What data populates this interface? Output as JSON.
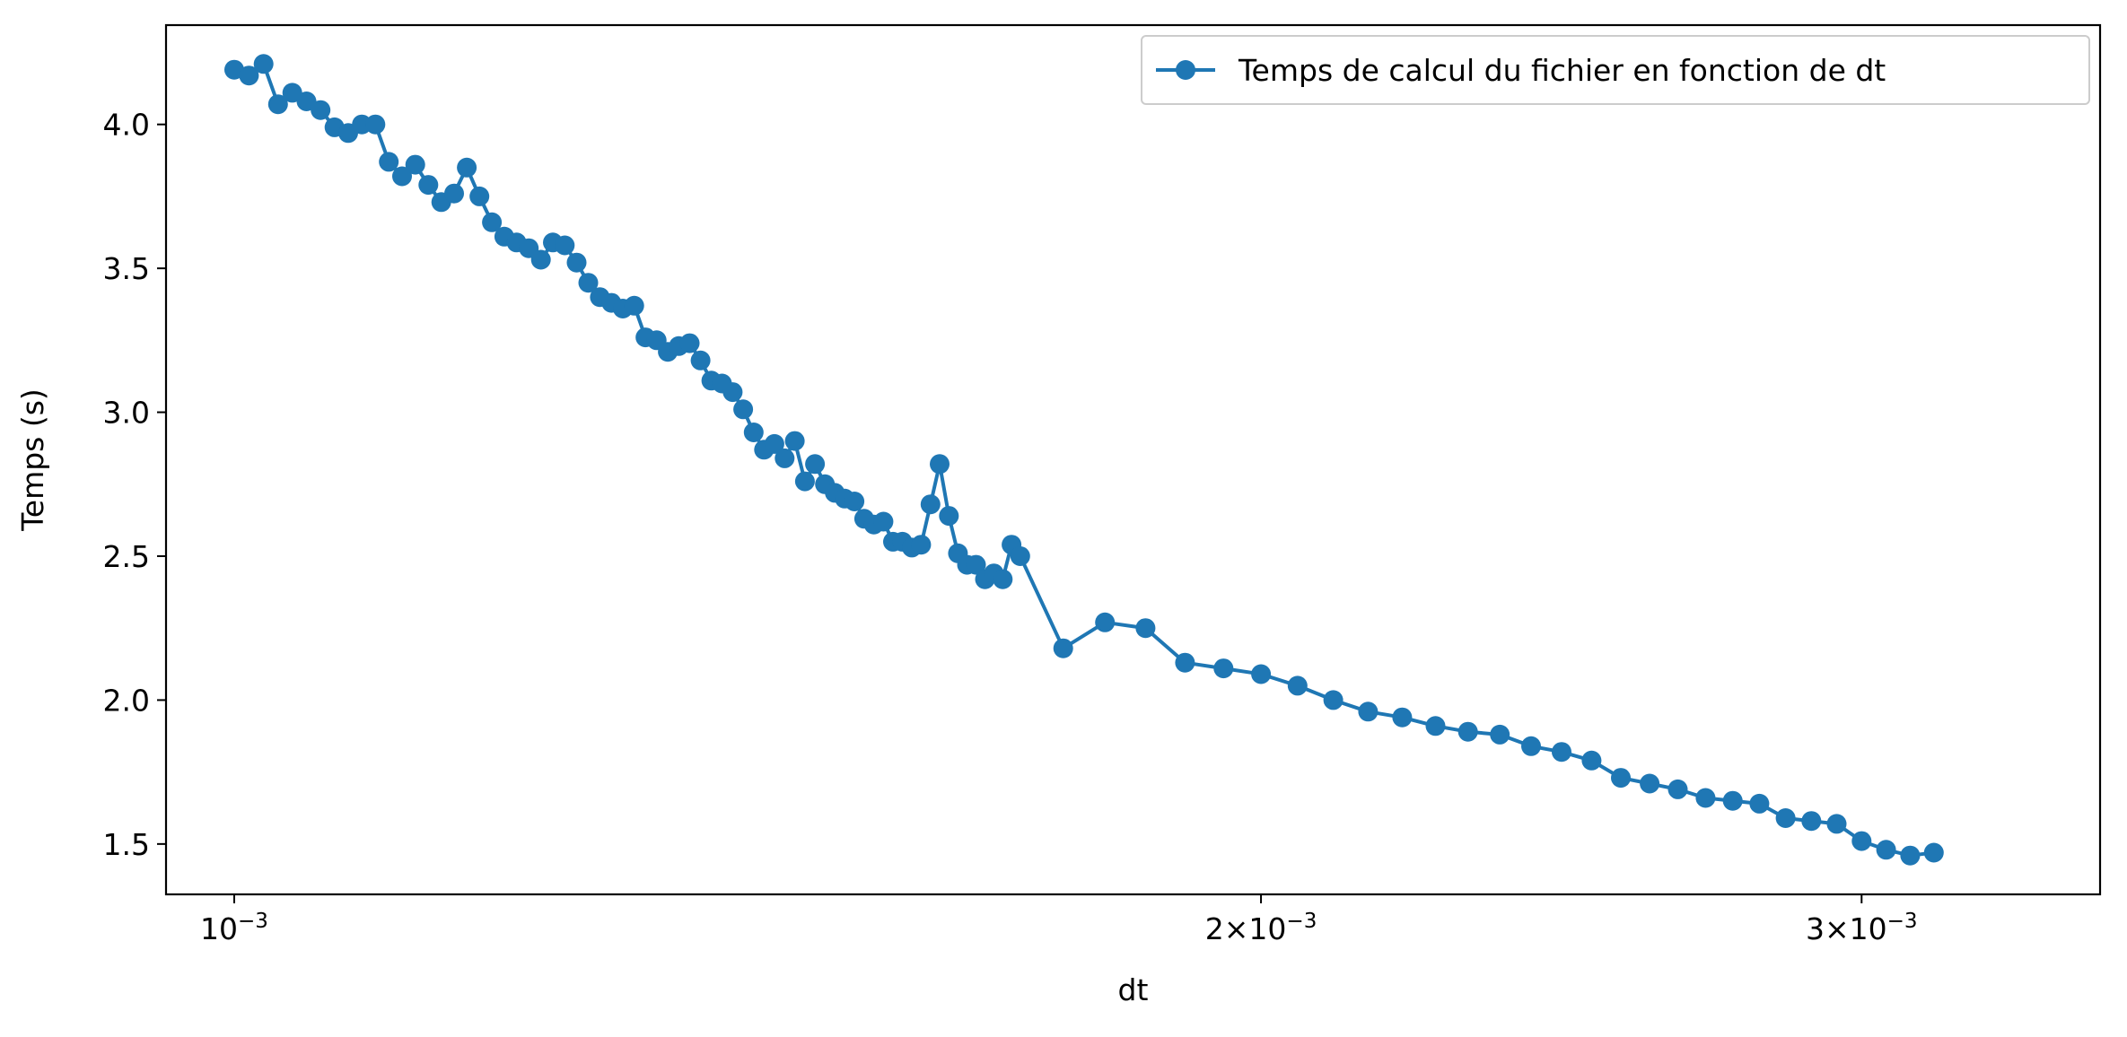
{
  "chart_data": {
    "type": "line",
    "title": "",
    "xlabel": "dt",
    "ylabel": "Temps (s)",
    "xscale": "log",
    "xlim": [
      0.000955,
      0.003524
    ],
    "ylim": [
      1.325,
      4.345
    ],
    "grid": false,
    "legend_position": "top-right",
    "x_tick_labels": [
      {
        "value": 0.001,
        "base": "10",
        "exp": "−3"
      },
      {
        "value": 0.002,
        "base": "2×10",
        "exp": "−3"
      },
      {
        "value": 0.003,
        "base": "3×10",
        "exp": "−3"
      }
    ],
    "y_ticks": [
      1.5,
      2.0,
      2.5,
      3.0,
      3.5,
      4.0
    ],
    "y_tick_labels": [
      "1.5",
      "2.0",
      "2.5",
      "3.0",
      "3.5",
      "4.0"
    ],
    "series": [
      {
        "name": "Temps de calcul du fichier en fonction de dt",
        "color": "#1f77b4",
        "marker": "circle",
        "points": [
          [
            0.001,
            4.19
          ],
          [
            0.00101,
            4.17
          ],
          [
            0.00102,
            4.21
          ],
          [
            0.00103,
            4.07
          ],
          [
            0.00104,
            4.11
          ],
          [
            0.00105,
            4.08
          ],
          [
            0.00106,
            4.05
          ],
          [
            0.00107,
            3.99
          ],
          [
            0.00108,
            3.97
          ],
          [
            0.00109,
            4.0
          ],
          [
            0.0011,
            4.0
          ],
          [
            0.00111,
            3.87
          ],
          [
            0.00112,
            3.82
          ],
          [
            0.00113,
            3.86
          ],
          [
            0.00114,
            3.79
          ],
          [
            0.00115,
            3.73
          ],
          [
            0.00116,
            3.76
          ],
          [
            0.00117,
            3.85
          ],
          [
            0.00118,
            3.75
          ],
          [
            0.00119,
            3.66
          ],
          [
            0.0012,
            3.61
          ],
          [
            0.00121,
            3.59
          ],
          [
            0.00122,
            3.57
          ],
          [
            0.00123,
            3.53
          ],
          [
            0.00124,
            3.59
          ],
          [
            0.00125,
            3.58
          ],
          [
            0.00126,
            3.52
          ],
          [
            0.00127,
            3.45
          ],
          [
            0.00128,
            3.4
          ],
          [
            0.00129,
            3.38
          ],
          [
            0.0013,
            3.36
          ],
          [
            0.00131,
            3.37
          ],
          [
            0.00132,
            3.26
          ],
          [
            0.00133,
            3.25
          ],
          [
            0.00134,
            3.21
          ],
          [
            0.00135,
            3.23
          ],
          [
            0.00136,
            3.24
          ],
          [
            0.00137,
            3.18
          ],
          [
            0.00138,
            3.11
          ],
          [
            0.00139,
            3.1
          ],
          [
            0.0014,
            3.07
          ],
          [
            0.00141,
            3.01
          ],
          [
            0.00142,
            2.93
          ],
          [
            0.00143,
            2.87
          ],
          [
            0.00144,
            2.89
          ],
          [
            0.00145,
            2.84
          ],
          [
            0.00146,
            2.9
          ],
          [
            0.00147,
            2.76
          ],
          [
            0.00148,
            2.82
          ],
          [
            0.00149,
            2.75
          ],
          [
            0.0015,
            2.72
          ],
          [
            0.00151,
            2.7
          ],
          [
            0.00152,
            2.69
          ],
          [
            0.00153,
            2.63
          ],
          [
            0.00154,
            2.61
          ],
          [
            0.00155,
            2.62
          ],
          [
            0.00156,
            2.55
          ],
          [
            0.00157,
            2.55
          ],
          [
            0.00158,
            2.53
          ],
          [
            0.00159,
            2.54
          ],
          [
            0.0016,
            2.68
          ],
          [
            0.00161,
            2.82
          ],
          [
            0.00162,
            2.64
          ],
          [
            0.00163,
            2.51
          ],
          [
            0.00164,
            2.47
          ],
          [
            0.00165,
            2.47
          ],
          [
            0.00166,
            2.42
          ],
          [
            0.00167,
            2.44
          ],
          [
            0.00168,
            2.42
          ],
          [
            0.00169,
            2.54
          ],
          [
            0.0017,
            2.5
          ],
          [
            0.00175,
            2.18
          ],
          [
            0.0018,
            2.27
          ],
          [
            0.00185,
            2.25
          ],
          [
            0.0019,
            2.13
          ],
          [
            0.00195,
            2.11
          ],
          [
            0.002,
            2.09
          ],
          [
            0.00205,
            2.05
          ],
          [
            0.0021,
            2.0
          ],
          [
            0.00215,
            1.96
          ],
          [
            0.0022,
            1.94
          ],
          [
            0.00225,
            1.91
          ],
          [
            0.0023,
            1.89
          ],
          [
            0.00235,
            1.88
          ],
          [
            0.0024,
            1.84
          ],
          [
            0.00245,
            1.82
          ],
          [
            0.0025,
            1.79
          ],
          [
            0.00255,
            1.73
          ],
          [
            0.0026,
            1.71
          ],
          [
            0.00265,
            1.69
          ],
          [
            0.0027,
            1.66
          ],
          [
            0.00275,
            1.65
          ],
          [
            0.0028,
            1.64
          ],
          [
            0.00285,
            1.59
          ],
          [
            0.0029,
            1.58
          ],
          [
            0.00295,
            1.57
          ],
          [
            0.003,
            1.51
          ],
          [
            0.00305,
            1.48
          ],
          [
            0.0031,
            1.46
          ],
          [
            0.00315,
            1.47
          ]
        ]
      }
    ]
  }
}
